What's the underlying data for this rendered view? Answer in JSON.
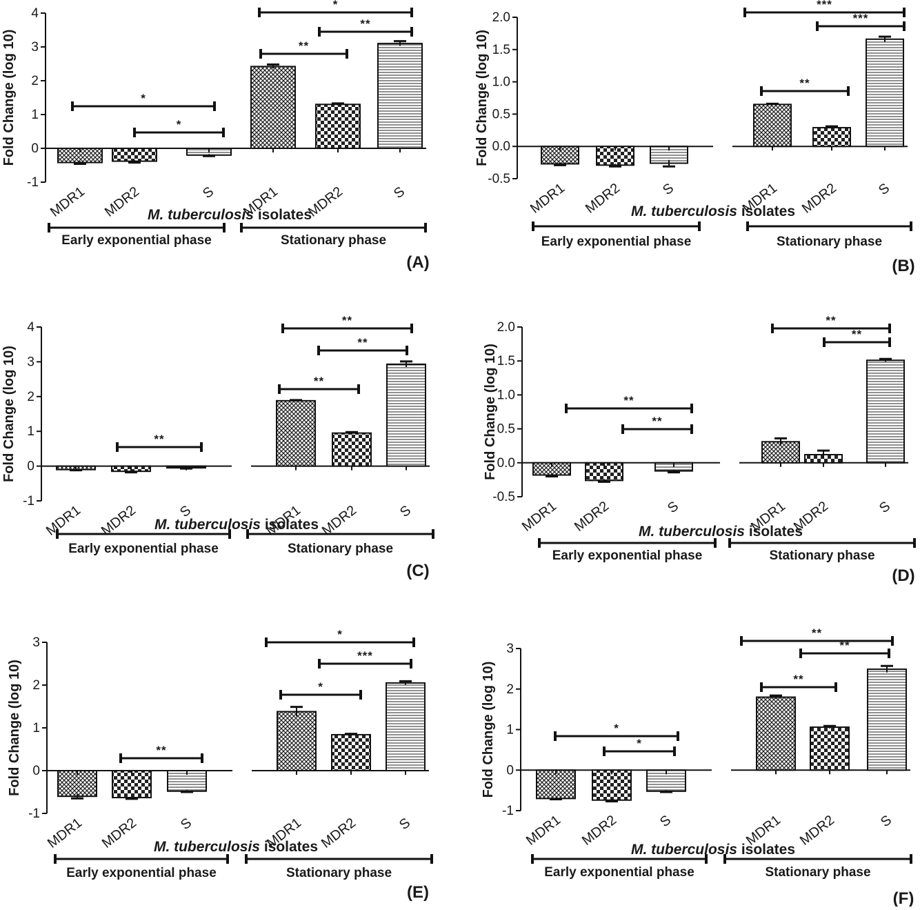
{
  "figure": {
    "xlabel_italic": "M. tuberculosis",
    "xlabel_rest": " isolates",
    "ylabel": "Fold Change (log 10)",
    "early_phase_label": "Early exponential phase",
    "stationary_phase_label": "Stationary phase"
  },
  "chart_data": [
    {
      "type": "bar",
      "panel": "(A)",
      "ylabel": "Fold Change (log 10)",
      "ylim": [
        -1,
        4
      ],
      "yticks": [
        -1,
        0,
        1,
        2,
        3,
        4
      ],
      "ytick_labels": [
        "-1",
        "0",
        "1",
        "2",
        "3",
        "4"
      ],
      "categories": [
        "MDR1",
        "MDR2",
        "S",
        "MDR1",
        "MDR2",
        "S"
      ],
      "groups": [
        "Early exponential phase",
        "Early exponential phase",
        "Early exponential phase",
        "Stationary phase",
        "Stationary phase",
        "Stationary phase"
      ],
      "values": [
        -0.42,
        -0.38,
        -0.2,
        2.42,
        1.3,
        3.1
      ],
      "errors": [
        0.04,
        0.04,
        0.03,
        0.06,
        0.03,
        0.07
      ],
      "significance": [
        {
          "from": 0,
          "to": 2,
          "label": "*"
        },
        {
          "from": 1,
          "to": 2,
          "label": "*"
        },
        {
          "from": 3,
          "to": 5,
          "label": "*"
        },
        {
          "from": 4,
          "to": 5,
          "label": "**"
        },
        {
          "from": 3,
          "to": 4,
          "label": "**"
        }
      ]
    },
    {
      "type": "bar",
      "panel": "(B)",
      "ylabel": "Fold Change (log 10)",
      "ylim": [
        -0.5,
        2.0
      ],
      "yticks": [
        -0.5,
        0,
        0.5,
        1,
        1.5,
        2
      ],
      "ytick_labels": [
        "-0.5",
        "0.0",
        "0.5",
        "1.0",
        "1.5",
        "2.0"
      ],
      "categories": [
        "MDR1",
        "MDR2",
        "S",
        "MDR1",
        "MDR2",
        "S"
      ],
      "groups": [
        "Early exponential phase",
        "Early exponential phase",
        "Early exponential phase",
        "Stationary phase",
        "Stationary phase",
        "Stationary phase"
      ],
      "values": [
        -0.27,
        -0.29,
        -0.26,
        0.65,
        0.29,
        1.66
      ],
      "errors": [
        0.02,
        0.02,
        0.05,
        0.01,
        0.02,
        0.04
      ],
      "significance": [
        {
          "from": 3,
          "to": 5,
          "label": "***"
        },
        {
          "from": 4,
          "to": 5,
          "label": "***"
        },
        {
          "from": 3,
          "to": 4,
          "label": "**"
        }
      ]
    },
    {
      "type": "bar",
      "panel": "(C)",
      "ylabel": "Fold Change (log 10)",
      "ylim": [
        -1,
        4
      ],
      "yticks": [
        -1,
        0,
        1,
        2,
        3,
        4
      ],
      "ytick_labels": [
        "-1",
        "0",
        "1",
        "2",
        "3",
        "4"
      ],
      "categories": [
        "MDR1",
        "MDR2",
        "S",
        "MDR1",
        "MDR2",
        "S"
      ],
      "groups": [
        "Early exponential phase",
        "Early exponential phase",
        "Early exponential phase",
        "Stationary phase",
        "Stationary phase",
        "Stationary phase"
      ],
      "values": [
        -0.1,
        -0.15,
        -0.05,
        1.88,
        0.95,
        2.93
      ],
      "errors": [
        0.02,
        0.03,
        0.02,
        0.02,
        0.03,
        0.08
      ],
      "significance": [
        {
          "from": 1,
          "to": 2,
          "label": "**"
        },
        {
          "from": 3,
          "to": 5,
          "label": "**"
        },
        {
          "from": 4,
          "to": 5,
          "label": "**"
        },
        {
          "from": 3,
          "to": 4,
          "label": "**"
        }
      ]
    },
    {
      "type": "bar",
      "panel": "(D)",
      "ylabel": "Fold Change (log 10)",
      "ylim": [
        -0.5,
        2.0
      ],
      "yticks": [
        -0.5,
        0,
        0.5,
        1,
        1.5,
        2
      ],
      "ytick_labels": [
        "-0.5",
        "0.0",
        "0.5",
        "1.0",
        "1.5",
        "2.0"
      ],
      "categories": [
        "MDR1",
        "MDR2",
        "S",
        "MDR1",
        "MDR2",
        "S"
      ],
      "groups": [
        "Early exponential phase",
        "Early exponential phase",
        "Early exponential phase",
        "Stationary phase",
        "Stationary phase",
        "Stationary phase"
      ],
      "values": [
        -0.18,
        -0.26,
        -0.12,
        0.31,
        0.12,
        1.51
      ],
      "errors": [
        0.02,
        0.02,
        0.02,
        0.05,
        0.06,
        0.02
      ],
      "significance": [
        {
          "from": 0,
          "to": 2,
          "label": "**"
        },
        {
          "from": 1,
          "to": 2,
          "label": "**"
        },
        {
          "from": 3,
          "to": 5,
          "label": "**"
        },
        {
          "from": 4,
          "to": 5,
          "label": "**"
        }
      ]
    },
    {
      "type": "bar",
      "panel": "(E)",
      "ylabel": "Fold Change (log 10)",
      "ylim": [
        -1,
        3
      ],
      "yticks": [
        -1,
        0,
        1,
        2,
        3
      ],
      "ytick_labels": [
        "-1",
        "0",
        "1",
        "2",
        "3"
      ],
      "categories": [
        "MDR1",
        "MDR2",
        "S",
        "MDR1",
        "MDR2",
        "S"
      ],
      "groups": [
        "Early exponential phase",
        "Early exponential phase",
        "Early exponential phase",
        "Stationary phase",
        "Stationary phase",
        "Stationary phase"
      ],
      "values": [
        -0.6,
        -0.63,
        -0.48,
        1.38,
        0.84,
        2.05
      ],
      "errors": [
        0.05,
        0.03,
        0.02,
        0.11,
        0.02,
        0.04
      ],
      "significance": [
        {
          "from": 1,
          "to": 2,
          "label": "**"
        },
        {
          "from": 3,
          "to": 5,
          "label": "*"
        },
        {
          "from": 4,
          "to": 5,
          "label": "***"
        },
        {
          "from": 3,
          "to": 4,
          "label": "*"
        }
      ]
    },
    {
      "type": "bar",
      "panel": "(F)",
      "ylabel": "Fold Change (log 10)",
      "ylim": [
        -1,
        3
      ],
      "yticks": [
        -1,
        0,
        1,
        2,
        3
      ],
      "ytick_labels": [
        "-1",
        "0",
        "1",
        "2",
        "3"
      ],
      "categories": [
        "MDR1",
        "MDR2",
        "S",
        "MDR1",
        "MDR2",
        "S"
      ],
      "groups": [
        "Early exponential phase",
        "Early exponential phase",
        "Early exponential phase",
        "Stationary phase",
        "Stationary phase",
        "Stationary phase"
      ],
      "values": [
        -0.7,
        -0.74,
        -0.52,
        1.8,
        1.06,
        2.49
      ],
      "errors": [
        0.02,
        0.03,
        0.02,
        0.04,
        0.03,
        0.08
      ],
      "significance": [
        {
          "from": 0,
          "to": 2,
          "label": "*"
        },
        {
          "from": 1,
          "to": 2,
          "label": "*"
        },
        {
          "from": 3,
          "to": 5,
          "label": "**"
        },
        {
          "from": 4,
          "to": 5,
          "label": "**"
        },
        {
          "from": 3,
          "to": 4,
          "label": "**"
        }
      ]
    }
  ]
}
